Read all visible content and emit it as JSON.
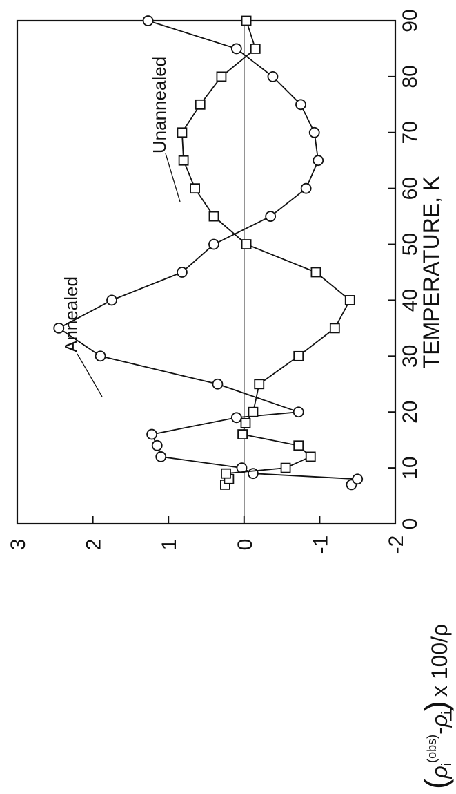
{
  "chart_data": {
    "type": "line",
    "xlabel": "TEMPERATURE, K",
    "ylabel_parts": {
      "open": "(",
      "rho1": "ρ",
      "sub1": "i",
      "sup1": "(obs)",
      "minus": "-",
      "rho2": "ρ̲",
      "sub2": "i",
      "close": ")",
      "tail": "x 100/ρ"
    },
    "xlim": [
      0,
      90
    ],
    "ylim": [
      -2,
      3
    ],
    "x_ticks": [
      0,
      10,
      20,
      30,
      40,
      50,
      60,
      70,
      80,
      90
    ],
    "y_ticks": [
      -2,
      -1,
      0,
      1,
      2,
      3
    ],
    "x_tick_labels": [
      "0",
      "10",
      "20",
      "30",
      "40",
      "50",
      "60",
      "70",
      "80",
      "90"
    ],
    "y_tick_labels": [
      "-2",
      "-1",
      "0",
      "1",
      "2",
      "3"
    ],
    "zero_line": true,
    "grid": false,
    "orientation": "rotated 90° counter-clockwise on page",
    "series": [
      {
        "name": "Annealed",
        "marker": "circle",
        "color": "#111111",
        "points": [
          [
            7,
            -1.42
          ],
          [
            8,
            -1.5
          ],
          [
            9,
            -0.12
          ],
          [
            10,
            0.03
          ],
          [
            12,
            1.1
          ],
          [
            14,
            1.15
          ],
          [
            16,
            1.22
          ],
          [
            19,
            0.1
          ],
          [
            20,
            -0.72
          ],
          [
            25,
            0.35
          ],
          [
            30,
            1.9
          ],
          [
            35,
            2.45
          ],
          [
            40,
            1.75
          ],
          [
            45,
            0.82
          ],
          [
            50,
            0.4
          ],
          [
            55,
            -0.35
          ],
          [
            60,
            -0.82
          ],
          [
            65,
            -0.98
          ],
          [
            70,
            -0.93
          ],
          [
            75,
            -0.75
          ],
          [
            80,
            -0.38
          ],
          [
            85,
            0.1
          ],
          [
            90,
            1.27
          ]
        ]
      },
      {
        "name": "Unannealed",
        "marker": "square",
        "color": "#111111",
        "points": [
          [
            7,
            0.25
          ],
          [
            8,
            0.2
          ],
          [
            9,
            0.24
          ],
          [
            10,
            -0.55
          ],
          [
            12,
            -0.88
          ],
          [
            14,
            -0.72
          ],
          [
            16,
            0.02
          ],
          [
            18,
            -0.02
          ],
          [
            20,
            -0.12
          ],
          [
            25,
            -0.2
          ],
          [
            30,
            -0.72
          ],
          [
            35,
            -1.2
          ],
          [
            40,
            -1.4
          ],
          [
            45,
            -0.95
          ],
          [
            50,
            -0.03
          ],
          [
            55,
            0.4
          ],
          [
            60,
            0.65
          ],
          [
            65,
            0.8
          ],
          [
            70,
            0.82
          ],
          [
            75,
            0.58
          ],
          [
            80,
            0.3
          ],
          [
            85,
            -0.15
          ],
          [
            90,
            -0.03
          ]
        ]
      }
    ],
    "annotations": [
      {
        "text": "Annealed",
        "series": "Annealed",
        "at_point": [
          40,
          1.75
        ]
      },
      {
        "text": "Unannealed",
        "series": "Unannealed",
        "at_point": [
          65,
          0.8
        ]
      }
    ]
  }
}
